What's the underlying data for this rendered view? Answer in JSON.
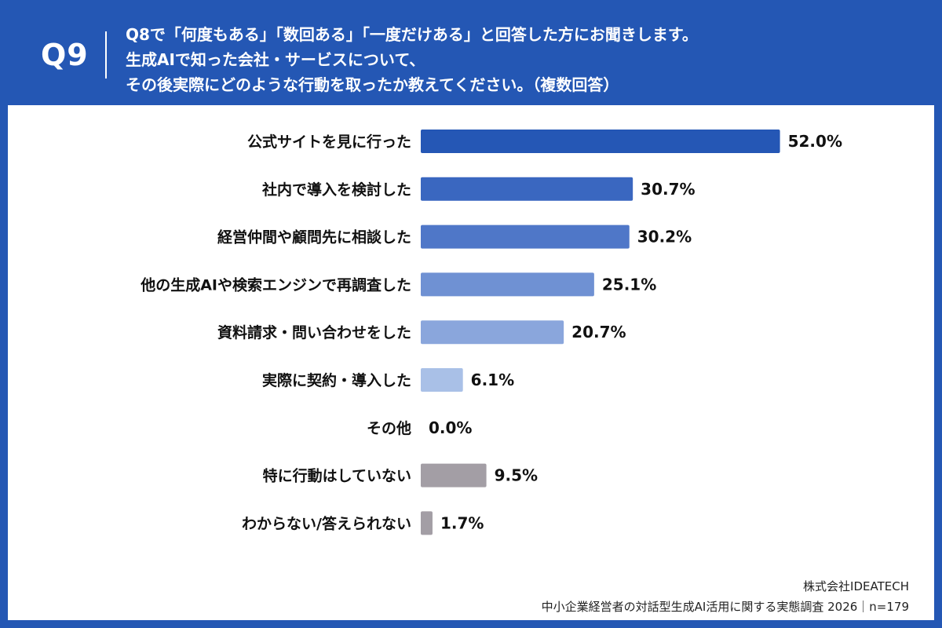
{
  "header": {
    "question_number": "Q9",
    "question_lines": [
      "Q8で「何度もある」「数回ある」「一度だけある」と回答した方にお聞きします。",
      "生成AIで知った会社・サービスについて、",
      "その後実際にどのような行動を取ったか教えてください。（複数回答）"
    ]
  },
  "chart_data": {
    "type": "bar",
    "orientation": "horizontal",
    "categories": [
      "公式サイトを見に行った",
      "社内で導入を検討した",
      "経営仲間や顧問先に相談した",
      "他の生成AIや検索エンジンで再調査した",
      "資料請求・問い合わせをした",
      "実際に契約・導入した",
      "その他",
      "特に行動はしていない",
      "わからない/答えられない"
    ],
    "values": [
      52.0,
      30.7,
      30.2,
      25.1,
      20.7,
      6.1,
      0.0,
      9.5,
      1.7
    ],
    "value_labels": [
      "52.0%",
      "30.7%",
      "30.2%",
      "25.1%",
      "20.7%",
      "6.1%",
      "0.0%",
      "9.5%",
      "1.7%"
    ],
    "colors": [
      "#2557b5",
      "#3a67c0",
      "#4f77c8",
      "#6f91d3",
      "#8aa6dc",
      "#a9c0e7",
      "#a9c0e7",
      "#a39ea5",
      "#a39ea5"
    ],
    "xlim": [
      0,
      60
    ],
    "grid": false,
    "legend": false
  },
  "footer": {
    "company": "株式会社IDEATECH",
    "survey": "中小企業経営者の対話型生成AI活用に関する実態調査 2026｜n=179"
  }
}
